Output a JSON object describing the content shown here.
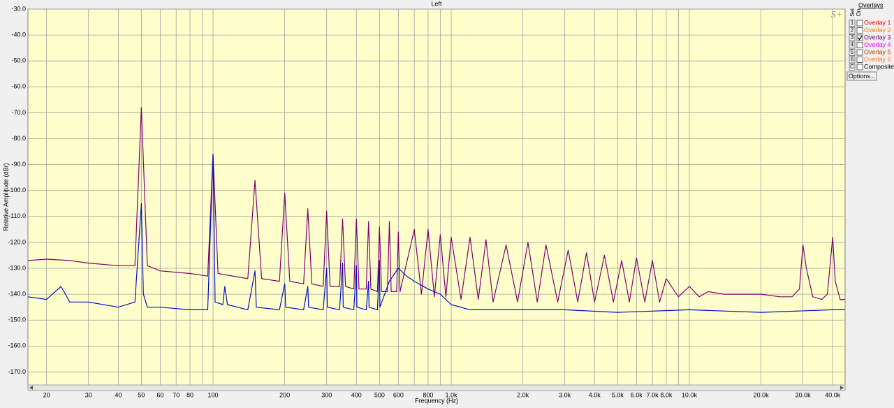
{
  "chart_data": {
    "type": "line",
    "title": "Left",
    "xlabel": "Frequency (Hz)",
    "ylabel": "Relative Amplitude (dBr)",
    "logo": "S+",
    "xscale": "log",
    "grid": true,
    "xlim": [
      16.7,
      45100
    ],
    "ylim": [
      -175,
      -30
    ],
    "xticks": [
      20,
      30,
      40,
      50,
      60,
      70,
      80,
      100,
      200,
      300,
      400,
      500,
      600,
      800,
      {
        "value": 1000,
        "label": "1.0k"
      },
      {
        "value": 2000,
        "label": "2.0k"
      },
      {
        "value": 3000,
        "label": "3.0k"
      },
      {
        "value": 4000,
        "label": "4.0k"
      },
      {
        "value": 5000,
        "label": "5.0k"
      },
      {
        "value": 6000,
        "label": "6.0k"
      },
      {
        "value": 7000,
        "label": "7.0k"
      },
      {
        "value": 8000,
        "label": "8.0k"
      },
      {
        "value": 10000,
        "label": "10.0k"
      },
      {
        "value": 20000,
        "label": "20.0k"
      },
      {
        "value": 30000,
        "label": "30.0k"
      },
      {
        "value": 40000,
        "label": "40.0k"
      }
    ],
    "xminor": [
      90,
      700,
      900,
      9000
    ],
    "yticks": [
      {
        "value": -30,
        "label": "-30.0"
      },
      {
        "value": -40,
        "label": "-40.0"
      },
      {
        "value": -50,
        "label": "-50.0"
      },
      {
        "value": -60,
        "label": "-60.0"
      },
      {
        "value": -70,
        "label": "-70.0"
      },
      {
        "value": -80,
        "label": "-80.0"
      },
      {
        "value": -90,
        "label": "-90.0"
      },
      {
        "value": -100,
        "label": "-100.0"
      },
      {
        "value": -110,
        "label": "-110.0"
      },
      {
        "value": -120,
        "label": "-120.0"
      },
      {
        "value": -130,
        "label": "-130.0"
      },
      {
        "value": -140,
        "label": "-140.0"
      },
      {
        "value": -150,
        "label": "-150.0"
      },
      {
        "value": -160,
        "label": "-160.0"
      },
      {
        "value": -170,
        "label": "-170.0"
      }
    ],
    "series": [
      {
        "color": "#800070",
        "x": [
          16.7,
          20,
          25,
          30,
          40,
          47,
          50,
          53,
          60,
          80,
          95,
          100,
          105,
          140,
          150,
          160,
          190,
          200,
          210,
          240,
          250,
          260,
          290,
          300,
          310,
          340,
          350,
          360,
          390,
          400,
          410,
          440,
          450,
          460,
          490,
          500,
          510,
          540,
          550,
          560,
          590,
          600,
          610,
          700,
          750,
          800,
          850,
          900,
          950,
          1000,
          1100,
          1200,
          1300,
          1400,
          1500,
          1700,
          1900,
          2100,
          2300,
          2500,
          2800,
          3100,
          3400,
          3700,
          4000,
          4400,
          4800,
          5200,
          5600,
          6000,
          6500,
          7000,
          7500,
          8000,
          9000,
          10000,
          11000,
          12000,
          14000,
          17000,
          20000,
          24000,
          27000,
          29000,
          30000,
          31000,
          33000,
          36000,
          38000,
          40000,
          41000,
          43000,
          45100
        ],
        "values": [
          -127,
          -126.5,
          -127,
          -128,
          -129,
          -129,
          -68,
          -129,
          -131,
          -132,
          -133,
          -86,
          -132,
          -134,
          -96,
          -134,
          -135,
          -101,
          -135,
          -136,
          -107,
          -136,
          -137,
          -108,
          -137,
          -137,
          -111,
          -137,
          -138,
          -111,
          -138,
          -138,
          -112,
          -138,
          -139,
          -114,
          -139,
          -139,
          -112,
          -139,
          -139,
          -116,
          -139,
          -115,
          -140,
          -115,
          -141,
          -117,
          -141,
          -118,
          -142,
          -118,
          -142,
          -119,
          -143,
          -121,
          -143,
          -120,
          -143,
          -121,
          -143,
          -123,
          -143,
          -124,
          -143,
          -125,
          -143,
          -127,
          -143,
          -126,
          -143,
          -127,
          -143,
          -134,
          -141,
          -137,
          -141,
          -139,
          -140,
          -140,
          -140,
          -141,
          -141,
          -138,
          -121,
          -130,
          -141,
          -142,
          -140,
          -118,
          -135,
          -142,
          -142
        ]
      },
      {
        "color": "#0010c8",
        "x": [
          16.7,
          20,
          23,
          24,
          25,
          30,
          40,
          47,
          50,
          51,
          53,
          60,
          80,
          95,
          100,
          102,
          110,
          112,
          115,
          140,
          150,
          152,
          190,
          200,
          202,
          240,
          250,
          252,
          290,
          300,
          302,
          340,
          350,
          352,
          390,
          400,
          402,
          440,
          450,
          452,
          490,
          500,
          502,
          550,
          600,
          650,
          700,
          800,
          900,
          1000,
          1200,
          1500,
          2000,
          3000,
          5000,
          10000,
          20000,
          40000,
          45100
        ],
        "values": [
          -141,
          -142,
          -137,
          -140,
          -143,
          -143,
          -145,
          -143,
          -105,
          -140,
          -145,
          -145,
          -146,
          -146,
          -86,
          -143,
          -144,
          -137,
          -144,
          -146,
          -131,
          -145,
          -146,
          -136,
          -145,
          -146,
          -137,
          -145,
          -146,
          -130,
          -145,
          -146,
          -128,
          -145,
          -146,
          -129,
          -145,
          -146,
          -135,
          -145,
          -146,
          -127,
          -145,
          -135,
          -130,
          -133,
          -135,
          -138,
          -140,
          -144,
          -146,
          -146,
          -146,
          -146,
          -147,
          -146,
          -147,
          -146,
          -146
        ]
      }
    ]
  },
  "overlays": {
    "title": "Overlays",
    "sel_label": "Sel",
    "on_label": "On",
    "button": "Options...",
    "items": [
      {
        "key": "1",
        "name": "Overlay 1",
        "color": "#ff0000",
        "checked": false
      },
      {
        "key": "2",
        "name": "Overlay 2",
        "color": "#ff8000",
        "checked": false
      },
      {
        "key": "3",
        "name": "Overlay 3",
        "color": "#800080",
        "checked": true
      },
      {
        "key": "4",
        "name": "Overlay 4",
        "color": "#ff00ff",
        "checked": false
      },
      {
        "key": "5",
        "name": "Overlay 5",
        "color": "#c04000",
        "checked": false
      },
      {
        "key": "6",
        "name": "Overlay 6",
        "color": "#ff8040",
        "checked": false
      },
      {
        "key": "C",
        "name": "Composite",
        "color": "#000000",
        "checked": false
      }
    ]
  }
}
